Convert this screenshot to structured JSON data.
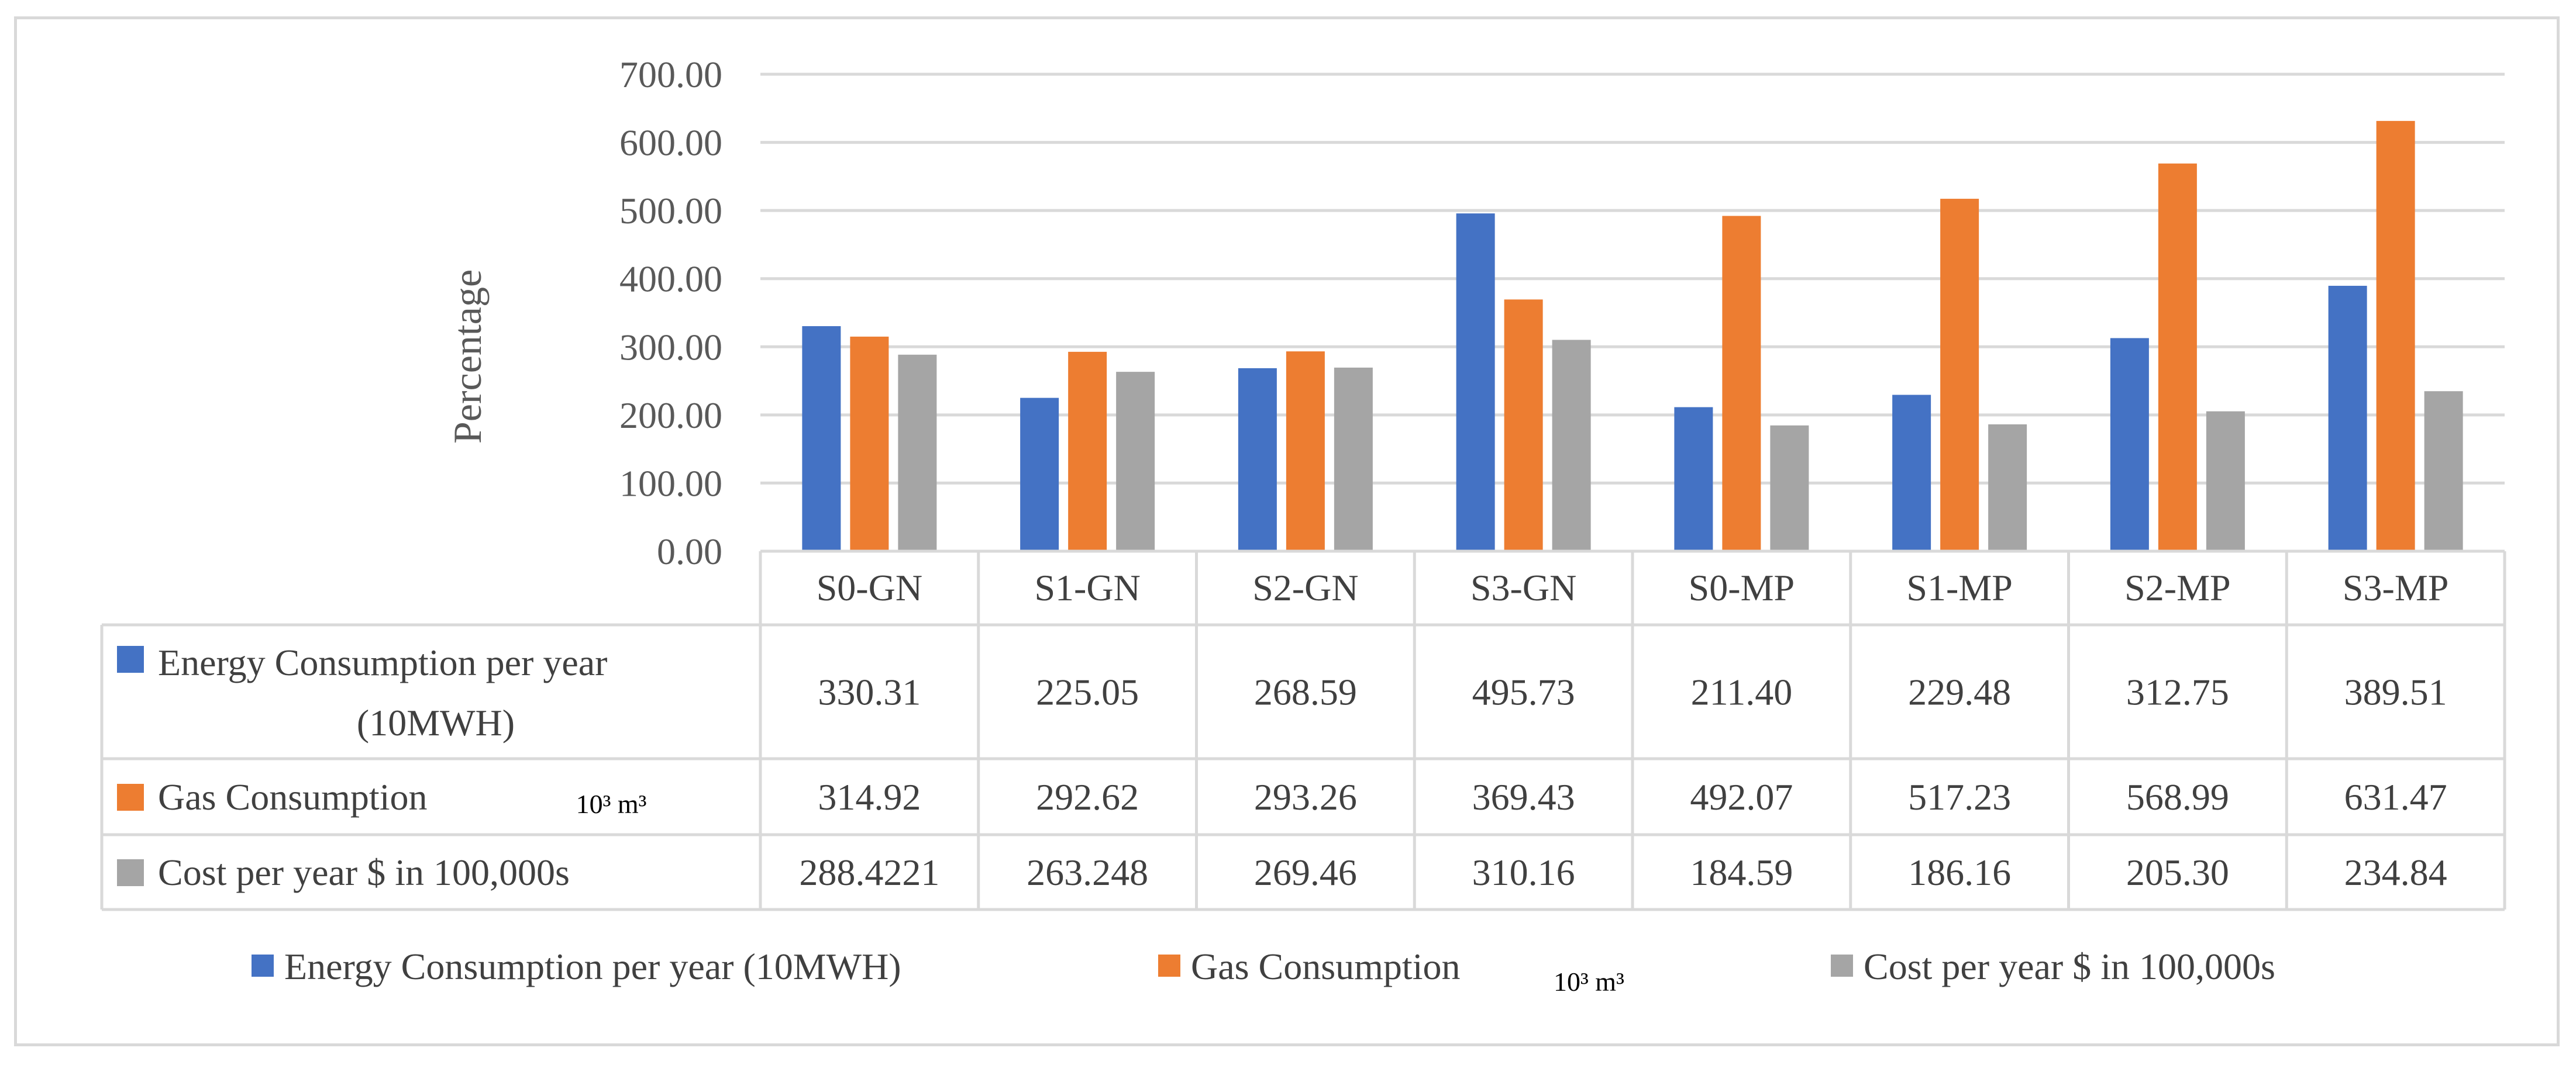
{
  "chart_data": {
    "type": "bar",
    "title": "",
    "xlabel": "",
    "ylabel": "Percentage",
    "ylim": [
      0,
      700
    ],
    "yticks": [
      "0.00",
      "100.00",
      "200.00",
      "300.00",
      "400.00",
      "500.00",
      "600.00",
      "700.00"
    ],
    "grid": true,
    "legend_position": "bottom",
    "categories": [
      "S0-GN",
      "S1-GN",
      "S2-GN",
      "S3-GN",
      "S0-MP",
      "S1-MP",
      "S2-MP",
      "S3-MP"
    ],
    "series": [
      {
        "name": "Energy Consumption per year (10MWH)",
        "table_label": [
          "Energy Consumption per year",
          "(10MWH)"
        ],
        "color": "#4472c4",
        "values": [
          330.31,
          225.05,
          268.59,
          495.73,
          211.4,
          229.48,
          312.75,
          389.51
        ],
        "labels": [
          "330.31",
          "225.05",
          "268.59",
          "495.73",
          "211.40",
          "229.48",
          "312.75",
          "389.51"
        ]
      },
      {
        "name": "Gas Consumption",
        "table_label": [
          "Gas Consumption"
        ],
        "unit": "10³ m³",
        "color": "#ed7d31",
        "values": [
          314.92,
          292.62,
          293.26,
          369.43,
          492.07,
          517.23,
          568.99,
          631.47
        ],
        "labels": [
          "314.92",
          "292.62",
          "293.26",
          "369.43",
          "492.07",
          "517.23",
          "568.99",
          "631.47"
        ]
      },
      {
        "name": "Cost per year $ in 100,000s",
        "table_label": [
          "Cost per year $ in 100,000s"
        ],
        "color": "#a5a5a5",
        "values": [
          288.4221,
          263.248,
          269.46,
          310.16,
          184.59,
          186.16,
          205.3,
          234.84
        ],
        "labels": [
          "288.4221",
          "263.248",
          "269.46",
          "310.16",
          "184.59",
          "186.16",
          "205.30",
          "234.84"
        ]
      }
    ]
  }
}
